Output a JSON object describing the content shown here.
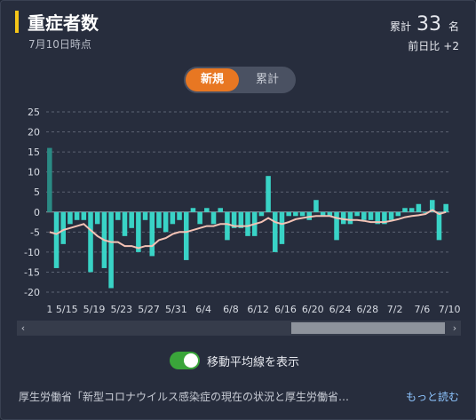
{
  "header": {
    "title": "重症者数",
    "date": "7月10日時点",
    "total_label": "累計",
    "total_value": "33",
    "total_unit": "名",
    "diff_label": "前日比",
    "diff_value": "+2"
  },
  "tabs": [
    {
      "label": "新規",
      "active": true
    },
    {
      "label": "累計",
      "active": false
    }
  ],
  "toggle": {
    "label": "移動平均線を表示",
    "on": true
  },
  "footer": {
    "source": "厚生労働省「新型コロナウイルス感染症の現在の状況と厚生労働省…",
    "more_label": "もっと読む",
    "more_color": "#8ec5ff"
  },
  "scrollbar": {
    "position_fraction": 0.64,
    "visible_fraction": 0.36
  },
  "colors": {
    "bar": "#39d3c6",
    "first_bar": "#2a8a84",
    "moving_average": "#f4c2b5",
    "accent": "#e87722",
    "title_bar": "#f5c518"
  },
  "chart_data": {
    "type": "bar",
    "ylim": [
      -20,
      25
    ],
    "yticks": [
      "25",
      "20",
      "15",
      "10",
      "5",
      "0",
      "-5",
      "-10",
      "-15",
      "-20"
    ],
    "x_tick_labels": [
      "1",
      "5/15",
      "5/19",
      "5/23",
      "5/27",
      "5/31",
      "6/4",
      "6/8",
      "6/12",
      "6/16",
      "6/20",
      "6/24",
      "6/28",
      "7/2",
      "7/6",
      "7/10"
    ],
    "values": [
      16,
      -14,
      -8,
      -3,
      -2,
      -2,
      -15,
      -3,
      -14,
      -19,
      -2,
      -6,
      -4,
      -10,
      -2,
      -11,
      -4,
      -5,
      -3,
      -2,
      -12,
      1,
      -3,
      1,
      -3,
      1,
      -7,
      -4,
      -4,
      -6,
      -6,
      -1,
      9,
      -10,
      -8,
      -1,
      -1,
      -1,
      -2,
      3,
      -1,
      -1,
      -7,
      -3,
      -3,
      -1,
      -2,
      -2,
      -3,
      -3,
      -2,
      -1,
      1,
      1,
      2,
      0,
      3,
      -7,
      2
    ],
    "moving_average": [
      -5,
      -5.5,
      -4.5,
      -4,
      -3.5,
      -3,
      -4.5,
      -6,
      -7,
      -7.5,
      -7.5,
      -8.5,
      -8.5,
      -9,
      -8.5,
      -8.5,
      -7,
      -6.5,
      -5.5,
      -5,
      -5,
      -4.5,
      -4,
      -3.5,
      -3.5,
      -3,
      -3,
      -3.5,
      -3.5,
      -3.5,
      -3,
      -2.5,
      -1.5,
      -2.5,
      -3,
      -2.5,
      -1.8,
      -1.5,
      -1.2,
      -1,
      -1,
      -1,
      -1.5,
      -1.8,
      -2,
      -2,
      -2.2,
      -2.5,
      -2.5,
      -2.5,
      -2.2,
      -1.8,
      -1.3,
      -1,
      -0.8,
      -0.5,
      0.5,
      -0.5,
      0
    ]
  }
}
